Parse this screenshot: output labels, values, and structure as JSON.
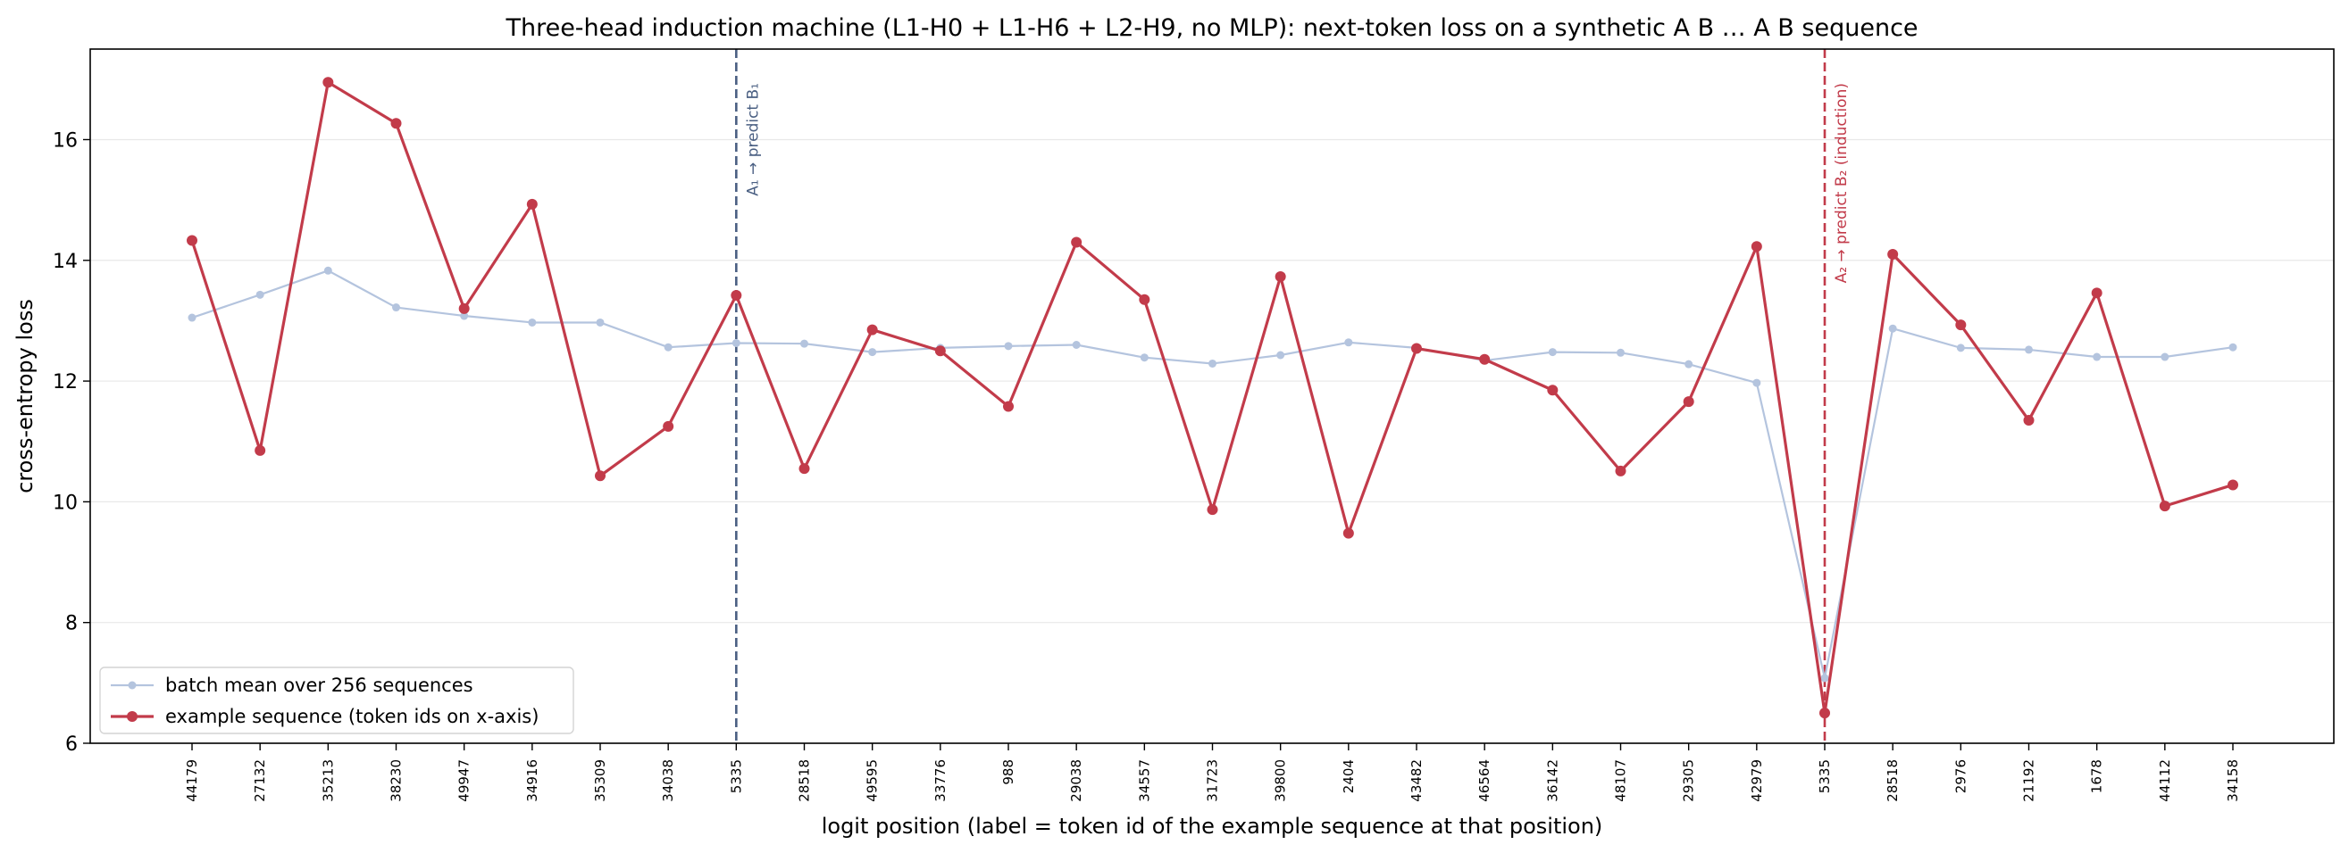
{
  "chart_data": {
    "type": "line",
    "title": "Three-head induction machine (L1-H0 + L1-H6 + L2-H9, no MLP): next-token loss on a synthetic A B … A B sequence",
    "xlabel": "logit position (label = token id of the example sequence at that position)",
    "ylabel": "cross-entropy loss",
    "ylim": [
      6,
      17.5
    ],
    "yticks": [
      6,
      8,
      10,
      12,
      14,
      16
    ],
    "categories": [
      "44179",
      "27132",
      "35213",
      "38230",
      "49947",
      "34916",
      "35309",
      "34038",
      "5335",
      "28518",
      "49595",
      "33776",
      "988",
      "29038",
      "34557",
      "31723",
      "39800",
      "2404",
      "43482",
      "46564",
      "36142",
      "48107",
      "29305",
      "42979",
      "5335",
      "28518",
      "2976",
      "21192",
      "1678",
      "44112",
      "34158"
    ],
    "series": [
      {
        "name": "batch mean over 256 sequences",
        "color": "#b4c4de",
        "values": [
          13.05,
          13.43,
          13.83,
          13.22,
          13.08,
          12.97,
          12.97,
          12.56,
          12.63,
          12.62,
          12.48,
          12.55,
          12.58,
          12.6,
          12.39,
          12.29,
          12.43,
          12.64,
          12.55,
          12.34,
          12.48,
          12.47,
          12.28,
          11.97,
          7.08,
          12.87,
          12.55,
          12.52,
          12.4,
          12.4,
          12.56
        ]
      },
      {
        "name": "example sequence (token ids on x-axis)",
        "color": "#c23b4a",
        "values": [
          14.33,
          10.85,
          16.95,
          16.27,
          13.2,
          14.93,
          10.43,
          11.25,
          13.42,
          10.55,
          12.85,
          12.5,
          11.58,
          14.3,
          13.35,
          9.87,
          13.73,
          9.48,
          12.54,
          12.36,
          11.85,
          10.51,
          11.66,
          14.23,
          6.5,
          14.1,
          12.93,
          11.35,
          13.46,
          9.93,
          10.28
        ]
      }
    ],
    "annotations": [
      {
        "index": 8,
        "label": "A₁ → predict B₁",
        "color": "#4a5f82"
      },
      {
        "index": 24,
        "label": "A₂ → predict B₂ (induction)",
        "color": "#c23b4a"
      }
    ],
    "grid": "horizontal",
    "legend": "bottom-left"
  }
}
